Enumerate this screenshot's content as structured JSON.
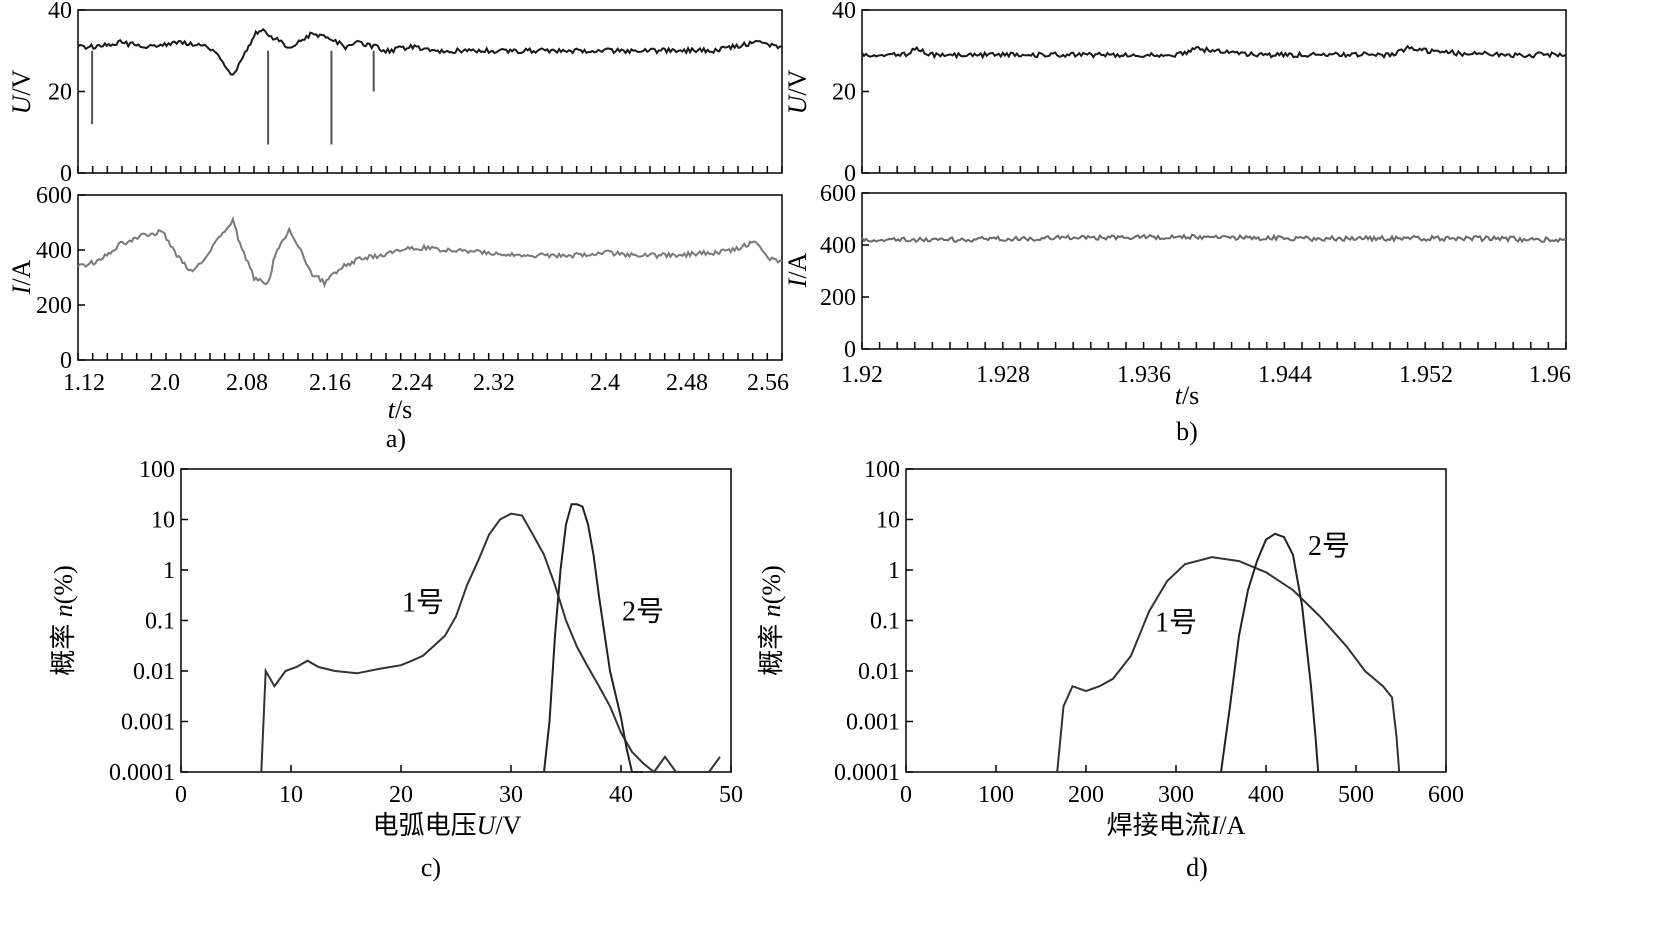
{
  "chart_data": [
    {
      "id": "a",
      "caption": "a)",
      "type": "line",
      "xlabel_var": "t",
      "xlabel_unit": "/s",
      "x_tick_labels": [
        "1.12",
        "2.0",
        "2.08",
        "2.16",
        "2.24",
        "2.32",
        "2.4",
        "2.48",
        "2.56"
      ],
      "subplots": [
        {
          "id": "a-voltage",
          "ylabel_var": "U",
          "ylabel_unit": "/V",
          "ylim": [
            0,
            40
          ],
          "yticks": [
            0,
            20,
            40
          ],
          "series": [
            {
              "color": "#1a1a1a",
              "x": [
                0.0,
                0.03,
                0.06,
                0.1,
                0.14,
                0.18,
                0.2,
                0.22,
                0.24,
                0.25,
                0.26,
                0.28,
                0.3,
                0.33,
                0.36,
                0.38,
                0.4,
                0.42,
                0.44,
                0.47,
                0.5,
                0.55,
                0.6,
                0.65,
                0.7,
                0.75,
                0.8,
                0.85,
                0.9,
                0.93,
                0.96,
                1.0
              ],
              "y": [
                31,
                31,
                32,
                31,
                32,
                31,
                29,
                24,
                30,
                34,
                35,
                33,
                31,
                34,
                33,
                31,
                32,
                31,
                30,
                31,
                30,
                30,
                30,
                30,
                30,
                30,
                30,
                30,
                30,
                31,
                32,
                31
              ]
            }
          ],
          "dips": [
            {
              "x": 0.02,
              "y": 12
            },
            {
              "x": 0.27,
              "y": 7
            },
            {
              "x": 0.36,
              "y": 7
            },
            {
              "x": 0.42,
              "y": 20
            }
          ]
        },
        {
          "id": "a-current",
          "ylabel_var": "I",
          "ylabel_unit": "/A",
          "ylim": [
            0,
            600
          ],
          "yticks": [
            0,
            200,
            400,
            600
          ],
          "series": [
            {
              "color": "#7a7a7a",
              "x": [
                0.0,
                0.03,
                0.06,
                0.09,
                0.12,
                0.14,
                0.16,
                0.18,
                0.2,
                0.22,
                0.23,
                0.25,
                0.27,
                0.28,
                0.3,
                0.31,
                0.33,
                0.35,
                0.37,
                0.4,
                0.43,
                0.46,
                0.48,
                0.52,
                0.58,
                0.65,
                0.7,
                0.75,
                0.8,
                0.85,
                0.9,
                0.93,
                0.96,
                0.98,
                1.0
              ],
              "y": [
                340,
                360,
                420,
                450,
                470,
                380,
                320,
                360,
                450,
                510,
                420,
                300,
                280,
                380,
                480,
                430,
                320,
                280,
                330,
                370,
                380,
                400,
                410,
                400,
                390,
                380,
                380,
                390,
                380,
                380,
                390,
                400,
                430,
                370,
                360
              ]
            }
          ]
        }
      ]
    },
    {
      "id": "b",
      "caption": "b)",
      "type": "line",
      "xlabel_var": "t",
      "xlabel_unit": "/s",
      "xlim": [
        1.92,
        1.96
      ],
      "x_tick_labels": [
        "1.92",
        "1.928",
        "1.936",
        "1.944",
        "1.952",
        "1.96"
      ],
      "subplots": [
        {
          "id": "b-voltage",
          "ylabel_var": "U",
          "ylabel_unit": "/V",
          "ylim": [
            0,
            40
          ],
          "yticks": [
            0,
            20,
            40
          ],
          "series": [
            {
              "color": "#1a1a1a",
              "x": [
                1.92,
                1.9225,
                1.923,
                1.924,
                1.928,
                1.932,
                1.936,
                1.938,
                1.939,
                1.942,
                1.946,
                1.95,
                1.951,
                1.954,
                1.957,
                1.96
              ],
              "y": [
                29,
                29,
                30.5,
                29,
                29,
                29,
                29,
                29,
                30.5,
                29,
                29,
                29,
                30.5,
                29.3,
                29,
                29
              ]
            }
          ]
        },
        {
          "id": "b-current",
          "ylabel_var": "I",
          "ylabel_unit": "/A",
          "ylim": [
            0,
            600
          ],
          "yticks": [
            0,
            200,
            400,
            600
          ],
          "series": [
            {
              "color": "#6a6a6a",
              "x": [
                1.92,
                1.925,
                1.93,
                1.935,
                1.94,
                1.945,
                1.95,
                1.955,
                1.96
              ],
              "y": [
                420,
                420,
                425,
                430,
                430,
                425,
                425,
                425,
                420
              ]
            }
          ]
        }
      ]
    },
    {
      "id": "c",
      "caption": "c)",
      "type": "line",
      "xlabel_text": "电弧电压",
      "xlabel_var": "U",
      "xlabel_unit": "/V",
      "ylabel_text": "概率 ",
      "ylabel_var": "n",
      "ylabel_unit": "(%)",
      "xlim": [
        0,
        50
      ],
      "xticks": [
        0,
        10,
        20,
        30,
        40,
        50
      ],
      "yscale": "log",
      "ylim": [
        0.0001,
        100
      ],
      "yticks": [
        0.0001,
        0.001,
        0.01,
        0.1,
        1,
        10,
        100
      ],
      "ytick_labels": [
        "0.0001",
        "0.001",
        "0.01",
        "0.1",
        "1",
        "10",
        "100"
      ],
      "series": [
        {
          "name": "1号",
          "color": "#333333",
          "x": [
            7.3,
            7.7,
            8.5,
            9.5,
            10.5,
            11.5,
            12.5,
            14,
            16,
            18,
            20,
            21,
            22,
            24,
            25,
            26,
            27,
            28,
            29,
            30,
            31,
            32,
            33,
            34,
            35,
            36,
            37,
            38,
            39,
            40,
            41,
            42,
            43,
            44,
            45,
            46,
            47,
            48,
            49
          ],
          "y": [
            0.0001,
            0.01,
            0.005,
            0.01,
            0.012,
            0.016,
            0.012,
            0.01,
            0.009,
            0.011,
            0.013,
            0.016,
            0.02,
            0.05,
            0.12,
            0.5,
            1.5,
            5,
            10,
            13,
            12,
            5,
            2,
            0.5,
            0.1,
            0.03,
            0.012,
            0.005,
            0.002,
            0.0006,
            0.00025,
            0.00015,
            0.0001,
            0.0002,
            8e-05,
            0.0001,
            8e-05,
            0.0001,
            0.0002
          ]
        },
        {
          "name": "2号",
          "color": "#222222",
          "x": [
            33,
            33.5,
            34,
            34.5,
            35,
            35.5,
            36,
            36.5,
            37,
            37.5,
            38,
            39,
            40,
            40.5,
            41,
            42
          ],
          "y": [
            0.0001,
            0.001,
            0.05,
            1,
            8,
            20,
            20,
            18,
            8,
            2,
            0.3,
            0.01,
            0.0012,
            0.0003,
            0.0001,
            5e-05
          ]
        }
      ],
      "annotations": [
        {
          "text": "1号",
          "x": 22,
          "y": 0.15
        },
        {
          "text": "2号",
          "x": 42,
          "y": 0.1
        }
      ]
    },
    {
      "id": "d",
      "caption": "d)",
      "type": "line",
      "xlabel_text": "焊接电流",
      "xlabel_var": "I",
      "xlabel_unit": "/A",
      "ylabel_text": "概率 ",
      "ylabel_var": "n",
      "ylabel_unit": "(%)",
      "xlim": [
        0,
        600
      ],
      "xticks": [
        0,
        100,
        200,
        300,
        400,
        500,
        600
      ],
      "yscale": "log",
      "ylim": [
        0.0001,
        100
      ],
      "yticks": [
        0.0001,
        0.001,
        0.01,
        0.1,
        1,
        10,
        100
      ],
      "ytick_labels": [
        "0.0001",
        "0.001",
        "0.01",
        "0.1",
        "1",
        "10",
        "100"
      ],
      "series": [
        {
          "name": "1号",
          "color": "#333333",
          "x": [
            168,
            175,
            185,
            200,
            215,
            230,
            250,
            270,
            290,
            310,
            340,
            370,
            400,
            430,
            460,
            490,
            510,
            530,
            540,
            545,
            548
          ],
          "y": [
            0.0001,
            0.002,
            0.005,
            0.004,
            0.005,
            0.007,
            0.02,
            0.15,
            0.6,
            1.3,
            1.8,
            1.5,
            0.9,
            0.4,
            0.12,
            0.03,
            0.01,
            0.005,
            0.003,
            0.0005,
            0.0001
          ]
        },
        {
          "name": "2号",
          "color": "#222222",
          "x": [
            350,
            360,
            370,
            380,
            390,
            400,
            410,
            420,
            430,
            440,
            450,
            455,
            458
          ],
          "y": [
            0.0001,
            0.002,
            0.05,
            0.4,
            1.5,
            4,
            5.2,
            4.5,
            2,
            0.2,
            0.005,
            0.0005,
            0.0001
          ]
        }
      ],
      "annotations": [
        {
          "text": "1号",
          "x": 300,
          "y": 0.06
        },
        {
          "text": "2号",
          "x": 470,
          "y": 2
        }
      ]
    }
  ]
}
